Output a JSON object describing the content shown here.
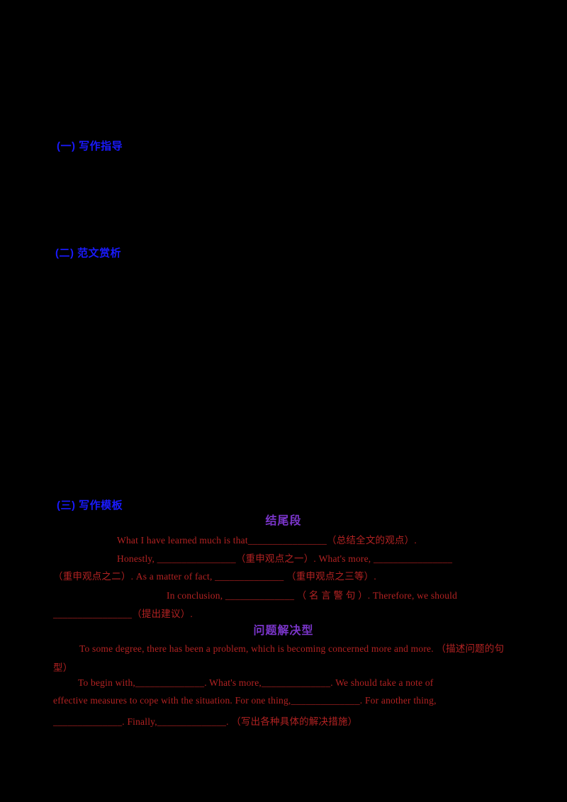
{
  "colors": {
    "background": "#000000",
    "heading_blue": "#1a1aff",
    "heading_purple": "#7a35c9",
    "body_red": "#b22222"
  },
  "blue_headings": [
    {
      "text": "(一) 写作指导"
    },
    {
      "text": "(二) 范文赏析"
    },
    {
      "text": "(三) 写作模板"
    }
  ],
  "purple_headings": [
    {
      "text": "结尾段"
    },
    {
      "text": "问题解决型"
    }
  ],
  "conclusion_template": {
    "lines": [
      "What I have learned much is that________________（总结全文的观点）.",
      "Honestly, ________________（重申观点之一）. What's more, ________________",
      "（重申观点之二）. As a matter of fact, ______________ （重申观点之三等）.",
      "In conclusion, ______________ （ 名 言 警 句 ）. Therefore, we should",
      "________________（提出建议）."
    ]
  },
  "problem_solution_template": {
    "lines": [
      "To some degree, there has been a problem, which is becoming concerned more and more. （描述问题的句",
      "型）",
      "To begin with,______________. What's more,______________. We should take a note of",
      "effective measures to cope with the situation. For one thing,______________. For another thing,",
      "______________. Finally,______________. （写出各种具体的解决措施）"
    ]
  }
}
